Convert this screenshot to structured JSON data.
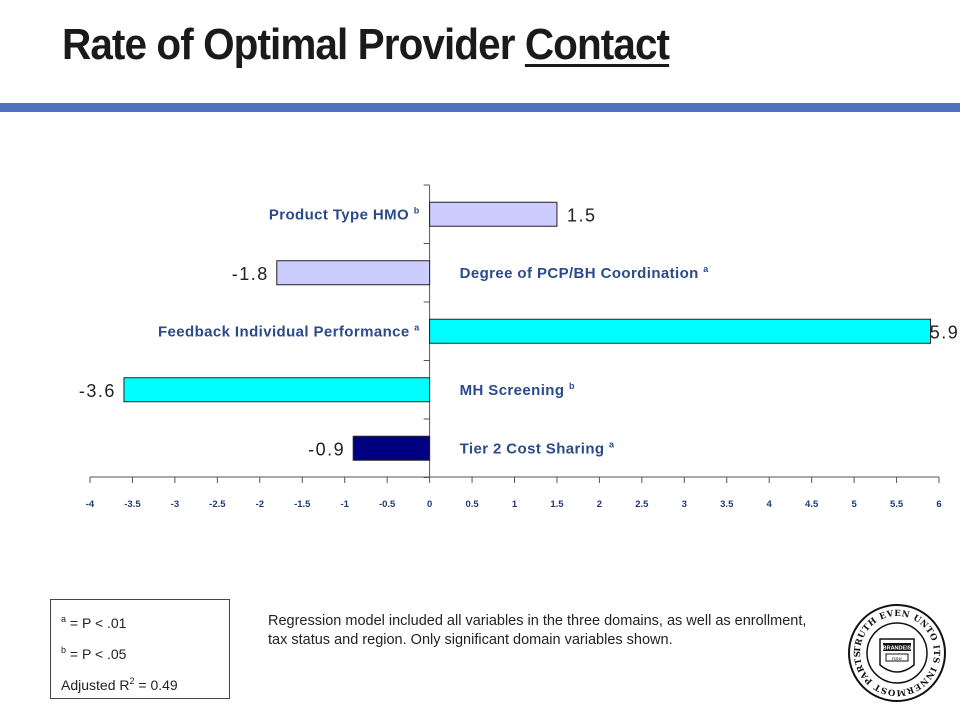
{
  "page": {
    "title_main": "Rate of Optimal Provider ",
    "title_underlined": "Contact",
    "accent_color": "#4f6fc0"
  },
  "chart_data": {
    "type": "bar",
    "orientation": "horizontal",
    "title": "Rate of Optimal Provider Contact",
    "xlim": [
      -4,
      6
    ],
    "x_ticks": [
      "-4",
      "-3.5",
      "-3",
      "-2.5",
      "-2",
      "-1.5",
      "-1",
      "-0.5",
      "0",
      "0.5",
      "1",
      "1.5",
      "2",
      "2.5",
      "3",
      "3.5",
      "4",
      "4.5",
      "5",
      "5.5",
      "6"
    ],
    "grid": false,
    "bars": [
      {
        "name": "Product Type HMO",
        "sup": "b",
        "value": 1.5,
        "value_label": "1.5",
        "color": "#ccccff"
      },
      {
        "name": "Degree of PCP/BH Coordination",
        "sup": "a",
        "value": -1.8,
        "value_label": "-1.8",
        "color": "#ccccff"
      },
      {
        "name": "Feedback Individual Performance",
        "sup": "a",
        "value": 5.9,
        "value_label": "5.9",
        "color": "#00ffff"
      },
      {
        "name": "MH Screening",
        "sup": "b",
        "value": -3.6,
        "value_label": "-3.6",
        "color": "#00ffff"
      },
      {
        "name": "Tier 2 Cost Sharing",
        "sup": "a",
        "value": -0.9,
        "value_label": "-0.9",
        "color": "#000080"
      }
    ]
  },
  "legend": {
    "a_text": " = P < .01",
    "b_text": " = P < .05",
    "r2_prefix": "Adjusted R",
    "r2_exp": "2",
    "r2_value": " = 0.49"
  },
  "note": "Regression model included all variables in the three domains, as well as enrollment, tax status and region.  Only significant domain variables shown.",
  "seal": {
    "ring_text": "TRUTH EVEN UNTO ITS INNERMOST PARTS",
    "center_text": "BRANDEIS",
    "word_top": "TRUTH",
    "hebrew": "אמת"
  }
}
